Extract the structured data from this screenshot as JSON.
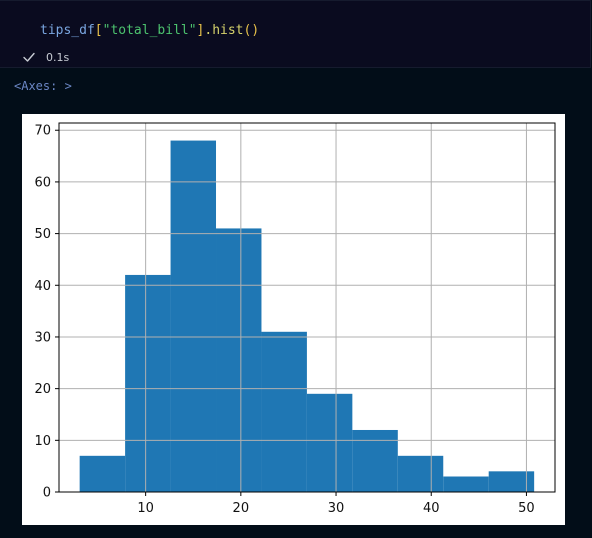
{
  "cell": {
    "code": {
      "var": "tips_df",
      "open_bracket": "[",
      "string": "\"total_bill\"",
      "close_bracket": "]",
      "dot_method": ".hist",
      "parens": "()"
    },
    "status_icon": "check-icon",
    "exec_time": "0.1s"
  },
  "output": {
    "repr": "<Axes: >"
  },
  "colors": {
    "bar": "#1f77b4",
    "grid": "#b0b0b0",
    "background": "#020d18"
  },
  "chart_data": {
    "type": "bar",
    "subtype": "histogram",
    "bins": [
      {
        "x0": 3.07,
        "x1": 7.844,
        "count": 7
      },
      {
        "x0": 7.844,
        "x1": 12.618,
        "count": 42
      },
      {
        "x0": 12.618,
        "x1": 17.392,
        "count": 68
      },
      {
        "x0": 17.392,
        "x1": 22.166,
        "count": 51
      },
      {
        "x0": 22.166,
        "x1": 26.94,
        "count": 31
      },
      {
        "x0": 26.94,
        "x1": 31.714,
        "count": 19
      },
      {
        "x0": 31.714,
        "x1": 36.488,
        "count": 12
      },
      {
        "x0": 36.488,
        "x1": 41.262,
        "count": 7
      },
      {
        "x0": 41.262,
        "x1": 46.036,
        "count": 3
      },
      {
        "x0": 46.036,
        "x1": 50.81,
        "count": 4
      }
    ],
    "xlim": [
      0.9,
      53.0
    ],
    "ylim": [
      0,
      71.4
    ],
    "xticks": [
      10,
      20,
      30,
      40,
      50
    ],
    "yticks": [
      0,
      10,
      20,
      30,
      40,
      50,
      60,
      70
    ],
    "grid": true,
    "title": "",
    "xlabel": "",
    "ylabel": ""
  }
}
